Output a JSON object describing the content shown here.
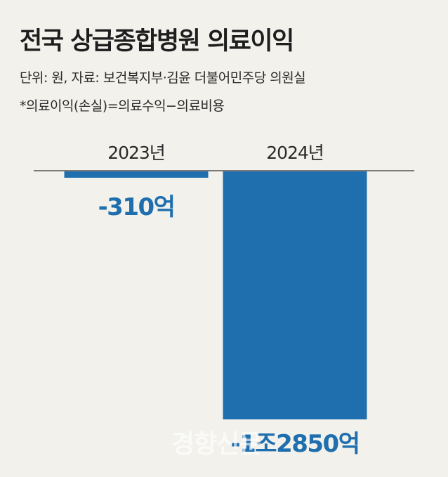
{
  "header": {
    "title": "전국 상급종합병원 의료이익",
    "subtitle": "단위: 원, 자료: 보건복지부·김윤 더불어민주당 의원실",
    "note": "*의료이익(손실)=의료수익−의료비용"
  },
  "watermark": "경향신문",
  "colors": {
    "bar": "#1f6fae",
    "background": "#f2f1ec",
    "baseline": "#333333"
  },
  "chart_data": {
    "type": "bar",
    "categories": [
      "2023년",
      "2024년"
    ],
    "values": [
      -310,
      -12850
    ],
    "value_labels": [
      "-310억",
      "-1조2850억"
    ],
    "ylabel": "",
    "unit": "억"
  }
}
